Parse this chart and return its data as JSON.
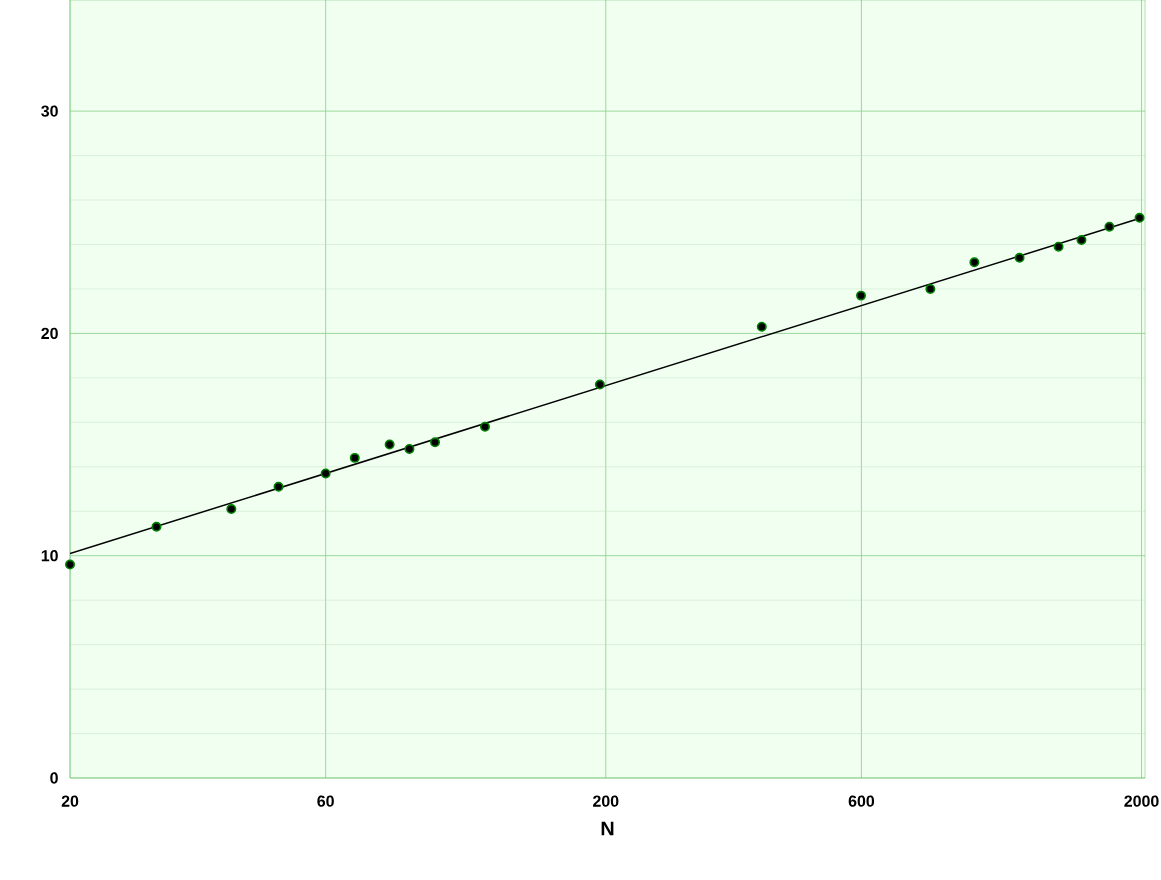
{
  "chart_data": {
    "type": "scatter",
    "xlabel": "N",
    "log": "x",
    "grid": true,
    "marker": "circle",
    "xlim": [
      20,
      2030
    ],
    "ylim": [
      0,
      35
    ],
    "xticks": [
      20,
      60,
      200,
      600,
      2000
    ],
    "yticks": [
      0,
      10,
      20,
      30
    ],
    "series": [
      {
        "color": "#000000",
        "x": [
          20,
          29,
          40,
          49,
          60,
          68,
          79,
          86,
          96,
          119,
          195,
          391,
          599,
          807,
          975,
          1184,
          1400,
          1545,
          1742,
          1983
        ],
        "values": [
          9.6,
          11.3,
          12.1,
          13.1,
          13.7,
          14.4,
          15.0,
          14.8,
          15.1,
          15.8,
          17.7,
          20.3,
          21.7,
          22.0,
          23.2,
          23.4,
          23.9,
          24.2,
          24.8,
          25.2
        ]
      },
      {
        "type": "line",
        "color": "#000000",
        "line_style": "solid",
        "x": [
          20,
          2000
        ],
        "values": [
          10.1,
          25.2
        ]
      }
    ]
  }
}
